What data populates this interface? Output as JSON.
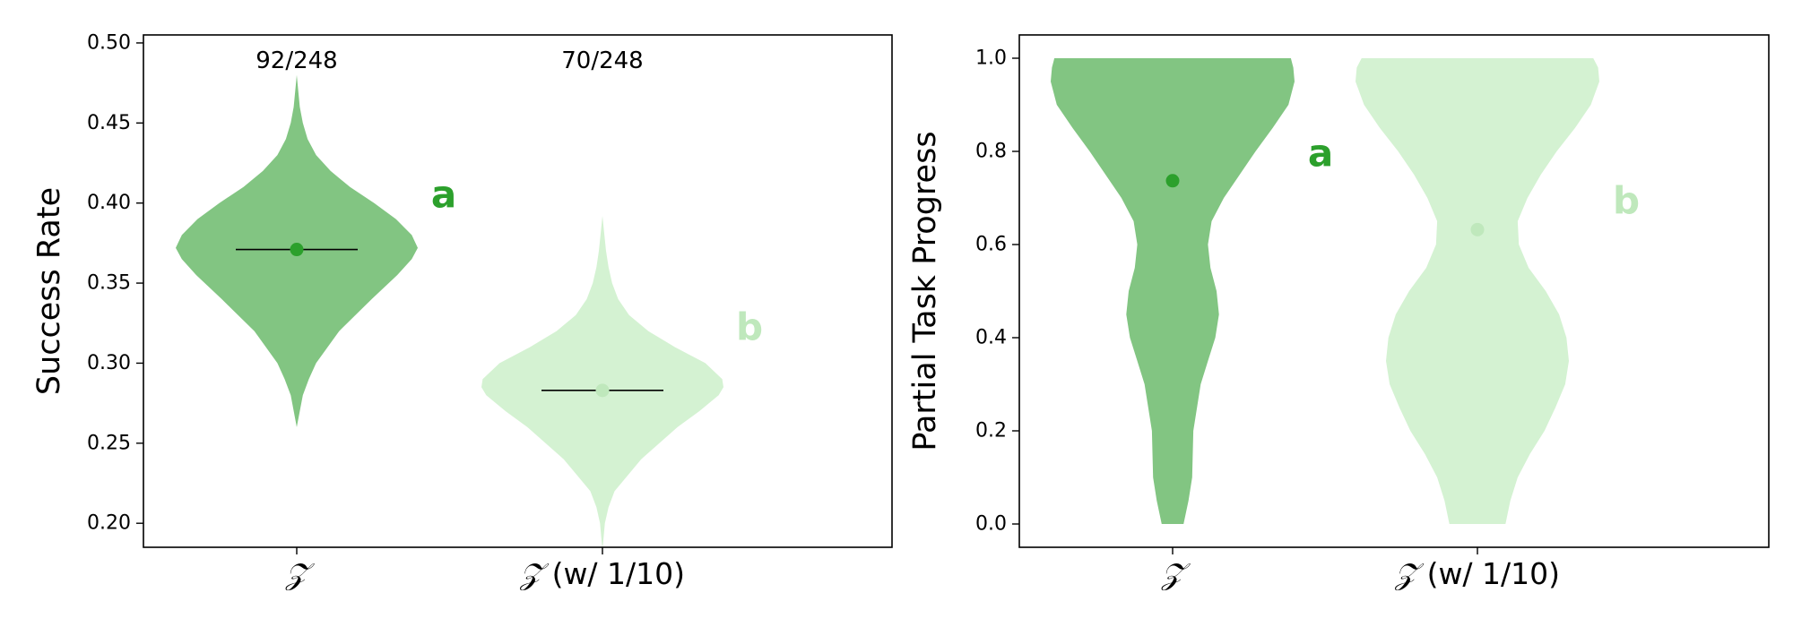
{
  "chart_data": [
    {
      "type": "violin",
      "ylabel": "Success Rate",
      "ylim": [
        0.185,
        0.505
      ],
      "yticks": [
        "0.20",
        "0.25",
        "0.30",
        "0.35",
        "0.40",
        "0.45",
        "0.50"
      ],
      "grid": false,
      "categories": [
        {
          "symbol": "𝒵",
          "suffix": ""
        },
        {
          "symbol": "𝒵",
          "suffix": " (w/ 1/10)"
        }
      ],
      "series": [
        {
          "mean": 0.371,
          "count_label": "92/248",
          "letter": "a",
          "color": "#82c582",
          "point_color": "#2ca02c",
          "letter_color": "#2ca02c",
          "range": [
            0.26,
            0.48
          ],
          "profile": [
            [
              0.26,
              0.0
            ],
            [
              0.28,
              0.05
            ],
            [
              0.29,
              0.1
            ],
            [
              0.3,
              0.16
            ],
            [
              0.32,
              0.35
            ],
            [
              0.34,
              0.62
            ],
            [
              0.355,
              0.83
            ],
            [
              0.365,
              0.95
            ],
            [
              0.372,
              1.0
            ],
            [
              0.38,
              0.95
            ],
            [
              0.39,
              0.82
            ],
            [
              0.4,
              0.64
            ],
            [
              0.41,
              0.44
            ],
            [
              0.42,
              0.28
            ],
            [
              0.43,
              0.16
            ],
            [
              0.44,
              0.09
            ],
            [
              0.45,
              0.05
            ],
            [
              0.46,
              0.025
            ],
            [
              0.48,
              0.0
            ]
          ]
        },
        {
          "mean": 0.283,
          "count_label": "70/248",
          "letter": "b",
          "color": "#d4f2d2",
          "point_color": "#bfe8bc",
          "letter_color": "#bfe8bc",
          "range": [
            0.183,
            0.392
          ],
          "profile": [
            [
              0.183,
              0.0
            ],
            [
              0.2,
              0.02
            ],
            [
              0.21,
              0.05
            ],
            [
              0.22,
              0.1
            ],
            [
              0.24,
              0.32
            ],
            [
              0.26,
              0.62
            ],
            [
              0.27,
              0.8
            ],
            [
              0.28,
              0.96
            ],
            [
              0.285,
              1.0
            ],
            [
              0.29,
              0.99
            ],
            [
              0.3,
              0.85
            ],
            [
              0.31,
              0.6
            ],
            [
              0.32,
              0.38
            ],
            [
              0.33,
              0.22
            ],
            [
              0.34,
              0.13
            ],
            [
              0.35,
              0.08
            ],
            [
              0.36,
              0.05
            ],
            [
              0.37,
              0.03
            ],
            [
              0.392,
              0.0
            ]
          ]
        }
      ]
    },
    {
      "type": "violin",
      "ylabel": "Partial Task Progress",
      "ylim": [
        -0.05,
        1.05
      ],
      "yticks": [
        "0.0",
        "0.2",
        "0.4",
        "0.6",
        "0.8",
        "1.0"
      ],
      "grid": false,
      "categories": [
        {
          "symbol": "𝒵",
          "suffix": ""
        },
        {
          "symbol": "𝒵",
          "suffix": " (w/ 1/10)"
        }
      ],
      "series": [
        {
          "mean": 0.737,
          "letter": "a",
          "color": "#82c582",
          "point_color": "#2ca02c",
          "letter_color": "#2ca02c",
          "range": [
            0.0,
            1.0
          ],
          "profile": [
            [
              0.0,
              0.09
            ],
            [
              0.05,
              0.13
            ],
            [
              0.1,
              0.16
            ],
            [
              0.2,
              0.17
            ],
            [
              0.3,
              0.23
            ],
            [
              0.35,
              0.29
            ],
            [
              0.4,
              0.35
            ],
            [
              0.45,
              0.38
            ],
            [
              0.5,
              0.36
            ],
            [
              0.55,
              0.31
            ],
            [
              0.6,
              0.29
            ],
            [
              0.65,
              0.32
            ],
            [
              0.7,
              0.42
            ],
            [
              0.75,
              0.55
            ],
            [
              0.8,
              0.68
            ],
            [
              0.85,
              0.82
            ],
            [
              0.9,
              0.95
            ],
            [
              0.95,
              1.0
            ],
            [
              0.98,
              0.99
            ],
            [
              1.0,
              0.97
            ]
          ]
        },
        {
          "mean": 0.632,
          "letter": "b",
          "color": "#d4f2d2",
          "point_color": "#bfe8bc",
          "letter_color": "#bfe8bc",
          "range": [
            0.0,
            1.0
          ],
          "profile": [
            [
              0.0,
              0.23
            ],
            [
              0.05,
              0.27
            ],
            [
              0.1,
              0.33
            ],
            [
              0.15,
              0.43
            ],
            [
              0.2,
              0.55
            ],
            [
              0.25,
              0.64
            ],
            [
              0.3,
              0.72
            ],
            [
              0.35,
              0.75
            ],
            [
              0.4,
              0.73
            ],
            [
              0.45,
              0.67
            ],
            [
              0.5,
              0.56
            ],
            [
              0.55,
              0.42
            ],
            [
              0.6,
              0.34
            ],
            [
              0.65,
              0.33
            ],
            [
              0.7,
              0.41
            ],
            [
              0.75,
              0.52
            ],
            [
              0.8,
              0.65
            ],
            [
              0.85,
              0.8
            ],
            [
              0.9,
              0.93
            ],
            [
              0.95,
              1.0
            ],
            [
              0.98,
              0.99
            ],
            [
              1.0,
              0.95
            ]
          ]
        }
      ]
    }
  ]
}
